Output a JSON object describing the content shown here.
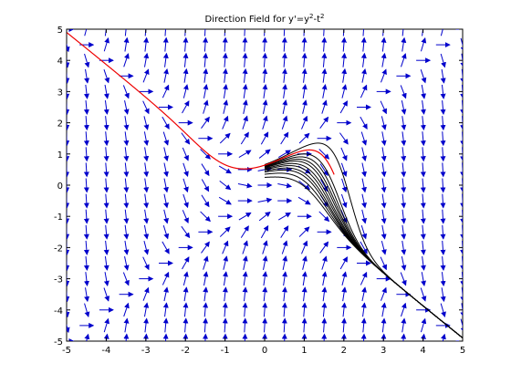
{
  "chart_data": {
    "type": "direction-field",
    "title": "Direction Field for y'=y",
    "title_sup_1": "2",
    "title_mid": "-t",
    "title_sup_2": "2",
    "equation": "y' = y^2 - t^2",
    "xlim": [
      -5,
      5
    ],
    "ylim": [
      -5,
      5
    ],
    "xticks": [
      -5,
      -4,
      -3,
      -2,
      -1,
      0,
      1,
      2,
      3,
      4,
      5
    ],
    "yticks": [
      -5,
      -4,
      -3,
      -2,
      -1,
      0,
      1,
      2,
      3,
      4,
      5
    ],
    "grid": false,
    "colors": {
      "arrows": "#0000cc",
      "solution_highlight": "#ee0000",
      "solutions": "#000000",
      "axes": "#000000"
    },
    "highlight_solution": {
      "name": "",
      "t0": 0,
      "y0": 0.64,
      "t_range": [
        -5,
        1.75
      ]
    },
    "solution_curves": [
      {
        "t0": 0,
        "y0": 0.66
      },
      {
        "t0": 0,
        "y0": 0.62
      },
      {
        "t0": 0,
        "y0": 0.6
      },
      {
        "t0": 0,
        "y0": 0.58
      },
      {
        "t0": 0,
        "y0": 0.56
      },
      {
        "t0": 0,
        "y0": 0.53
      },
      {
        "t0": 0,
        "y0": 0.5
      },
      {
        "t0": 0,
        "y0": 0.46
      },
      {
        "t0": 0,
        "y0": 0.42
      },
      {
        "t0": 0,
        "y0": 0.35
      },
      {
        "t0": 0,
        "y0": 0.25
      }
    ]
  }
}
